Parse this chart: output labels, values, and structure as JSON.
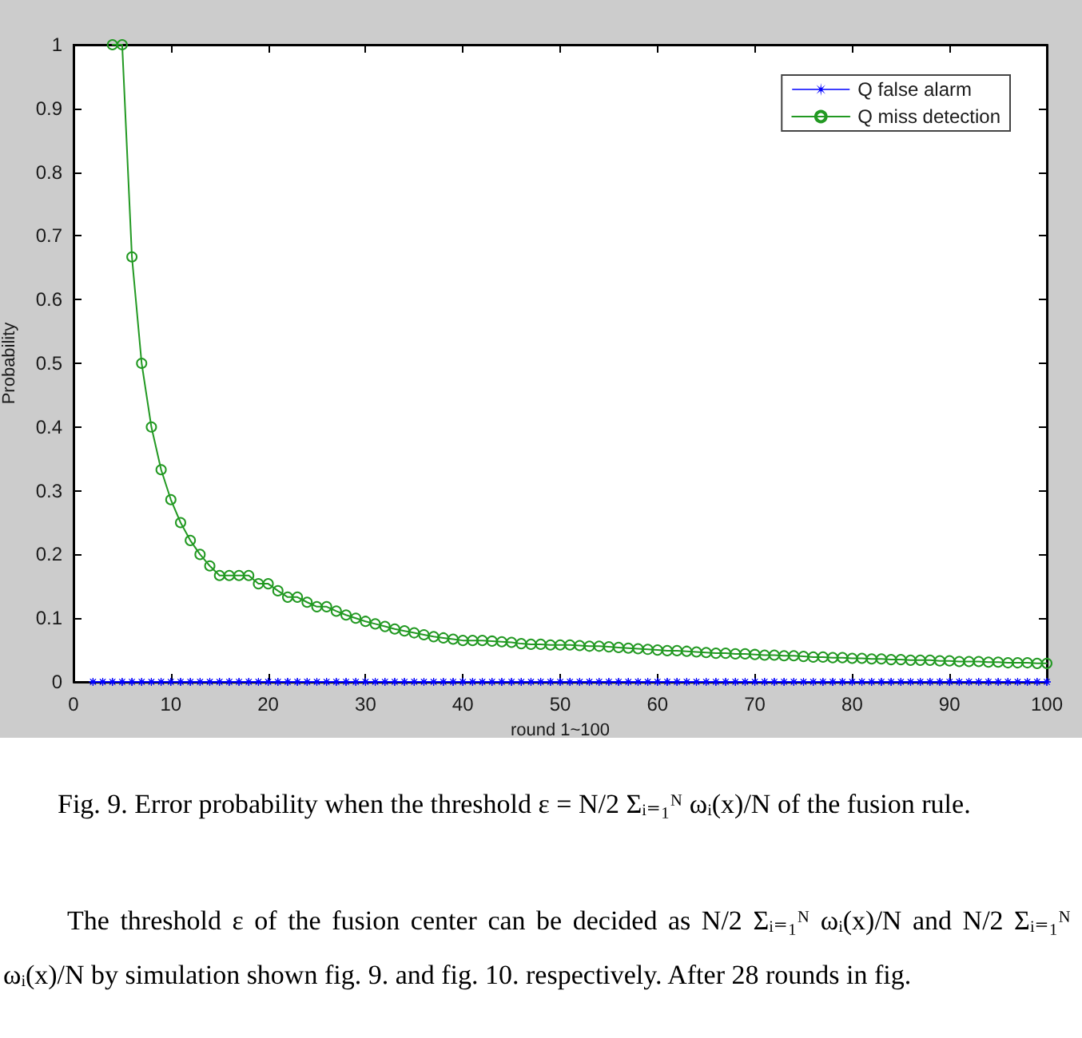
{
  "chart_data": {
    "type": "line",
    "xlabel": "round 1~100",
    "ylabel": "Probability",
    "xlim": [
      0,
      100
    ],
    "xticks": [
      0,
      10,
      20,
      30,
      40,
      50,
      60,
      70,
      80,
      90,
      100
    ],
    "ylim": [
      0,
      1
    ],
    "yticks": [
      0,
      0.1,
      0.2,
      0.3,
      0.4,
      0.5,
      0.6,
      0.7,
      0.8,
      0.9,
      1
    ],
    "legend": "top right",
    "line_style": "solid",
    "series": [
      {
        "name": "Q false alarm",
        "color": "#0000ff",
        "marker": "star",
        "x": [
          2,
          3,
          4,
          5,
          6,
          7,
          8,
          9,
          10,
          11,
          12,
          13,
          14,
          15,
          16,
          17,
          18,
          19,
          20,
          21,
          22,
          23,
          24,
          25,
          26,
          27,
          28,
          29,
          30,
          31,
          32,
          33,
          34,
          35,
          36,
          37,
          38,
          39,
          40,
          41,
          42,
          43,
          44,
          45,
          46,
          47,
          48,
          49,
          50,
          51,
          52,
          53,
          54,
          55,
          56,
          57,
          58,
          59,
          60,
          61,
          62,
          63,
          64,
          65,
          66,
          67,
          68,
          69,
          70,
          71,
          72,
          73,
          74,
          75,
          76,
          77,
          78,
          79,
          80,
          81,
          82,
          83,
          84,
          85,
          86,
          87,
          88,
          89,
          90,
          91,
          92,
          93,
          94,
          95,
          96,
          97,
          98,
          99,
          100
        ],
        "values": [
          0,
          0,
          0,
          0,
          0,
          0,
          0,
          0,
          0,
          0,
          0,
          0,
          0,
          0,
          0,
          0,
          0,
          0,
          0,
          0,
          0,
          0,
          0,
          0,
          0,
          0,
          0,
          0,
          0,
          0,
          0,
          0,
          0,
          0,
          0,
          0,
          0,
          0,
          0,
          0,
          0,
          0,
          0,
          0,
          0,
          0,
          0,
          0,
          0,
          0,
          0,
          0,
          0,
          0,
          0,
          0,
          0,
          0,
          0,
          0,
          0,
          0,
          0,
          0,
          0,
          0,
          0,
          0,
          0,
          0,
          0,
          0,
          0,
          0,
          0,
          0,
          0,
          0,
          0,
          0,
          0,
          0,
          0,
          0,
          0,
          0,
          0,
          0,
          0,
          0,
          0,
          0,
          0,
          0,
          0,
          0,
          0,
          0,
          0
        ]
      },
      {
        "name": "Q miss detection",
        "color": "#229922",
        "marker": "circle",
        "x": [
          4,
          5,
          6,
          7,
          8,
          9,
          10,
          11,
          12,
          13,
          14,
          15,
          16,
          17,
          18,
          19,
          20,
          21,
          22,
          23,
          24,
          25,
          26,
          27,
          28,
          29,
          30,
          31,
          32,
          33,
          34,
          35,
          36,
          37,
          38,
          39,
          40,
          41,
          42,
          43,
          44,
          45,
          46,
          47,
          48,
          49,
          50,
          51,
          52,
          53,
          54,
          55,
          56,
          57,
          58,
          59,
          60,
          61,
          62,
          63,
          64,
          65,
          66,
          67,
          68,
          69,
          70,
          71,
          72,
          73,
          74,
          75,
          76,
          77,
          78,
          79,
          80,
          81,
          82,
          83,
          84,
          85,
          86,
          87,
          88,
          89,
          90,
          91,
          92,
          93,
          94,
          95,
          96,
          97,
          98,
          99,
          100
        ],
        "values": [
          1,
          1,
          0.667,
          0.5,
          0.4,
          0.333,
          0.286,
          0.25,
          0.222,
          0.2,
          0.182,
          0.167,
          0.167,
          0.167,
          0.167,
          0.154,
          0.154,
          0.143,
          0.133,
          0.133,
          0.125,
          0.118,
          0.118,
          0.111,
          0.105,
          0.1,
          0.095,
          0.091,
          0.087,
          0.083,
          0.08,
          0.077,
          0.074,
          0.071,
          0.069,
          0.067,
          0.065,
          0.065,
          0.065,
          0.064,
          0.063,
          0.062,
          0.06,
          0.059,
          0.059,
          0.058,
          0.058,
          0.058,
          0.057,
          0.056,
          0.056,
          0.055,
          0.054,
          0.053,
          0.052,
          0.051,
          0.05,
          0.049,
          0.049,
          0.048,
          0.047,
          0.046,
          0.045,
          0.045,
          0.044,
          0.044,
          0.043,
          0.042,
          0.042,
          0.041,
          0.041,
          0.04,
          0.039,
          0.039,
          0.038,
          0.038,
          0.037,
          0.037,
          0.036,
          0.036,
          0.035,
          0.035,
          0.034,
          0.034,
          0.034,
          0.033,
          0.033,
          0.032,
          0.032,
          0.032,
          0.031,
          0.031,
          0.03,
          0.03,
          0.03,
          0.029,
          0.029
        ]
      }
    ],
    "annotations": [
      "Fig. 9. Error probability when the threshold ε = N/2 Σᵢ₌₁ᴺ ωᵢ(x)/N of the fusion rule.",
      "The threshold ε of the fusion center can be decided as N/2 Σᵢ₌₁ᴺ ωᵢ(x)/N and N/2 Σᵢ₌₁ᴺ ωᵢ(x)/N by simulation shown fig. 9. and fig. 10. respectively. After 28 rounds in fig."
    ]
  }
}
